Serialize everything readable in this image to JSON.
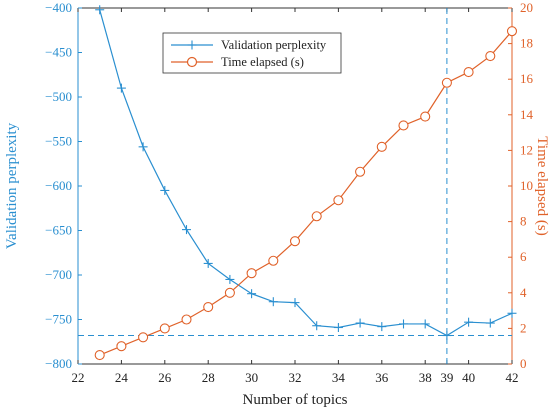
{
  "chart_data": {
    "type": "line",
    "xlabel": "Number of topics",
    "ylabel_left": "Validation perplexity",
    "ylabel_right": "Time elapsed (s)",
    "xlim": [
      22,
      42
    ],
    "ylim_left": [
      -800,
      -400
    ],
    "ylim_right": [
      0,
      20
    ],
    "x_ticks": [
      "22",
      "24",
      "26",
      "28",
      "30",
      "32",
      "34",
      "36",
      "38",
      "39",
      "40",
      "42"
    ],
    "y_left_ticks": [
      "-400",
      "-450",
      "-500",
      "-550",
      "-600",
      "-650",
      "-700",
      "-750",
      "-800"
    ],
    "y_right_ticks": [
      "0",
      "2",
      "4",
      "6",
      "8",
      "10",
      "12",
      "14",
      "16",
      "18",
      "20"
    ],
    "x": [
      23,
      24,
      25,
      26,
      27,
      28,
      29,
      30,
      31,
      32,
      33,
      34,
      35,
      36,
      37,
      38,
      39,
      40,
      41,
      42
    ],
    "series": [
      {
        "name": "Validation perplexity",
        "axis": "left",
        "marker": "+",
        "values": [
          -402,
          -490,
          -556,
          -605,
          -649,
          -687,
          -705,
          -721,
          -730,
          -731,
          -757,
          -759,
          -754,
          -758,
          -755,
          -755,
          -768,
          -753,
          -754,
          -743
        ],
        "color": "#2a8fd0"
      },
      {
        "name": "Time elapsed (s)",
        "axis": "right",
        "marker": "o",
        "values": [
          0.5,
          1.0,
          1.5,
          2.0,
          2.5,
          3.2,
          4.0,
          5.1,
          5.8,
          6.9,
          8.3,
          9.2,
          10.8,
          12.2,
          13.4,
          13.9,
          15.8,
          16.4,
          17.3,
          18.7
        ],
        "color": "#e0622a"
      }
    ],
    "reference_lines": {
      "vertical_x": 39,
      "horizontal_y_left": -768
    },
    "legend_placement": "top-center",
    "grid": false
  }
}
